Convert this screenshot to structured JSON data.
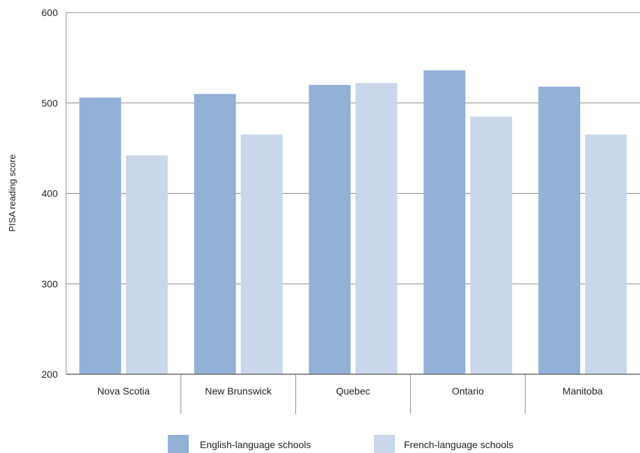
{
  "chart_data": {
    "type": "bar",
    "ylabel": "PISA reading score",
    "ylim": [
      200,
      600
    ],
    "yticks": [
      200,
      300,
      400,
      500,
      600
    ],
    "grid": true,
    "legend_position": "bottom",
    "categories": [
      "Nova Scotia",
      "New Brunswick",
      "Quebec",
      "Ontario",
      "Manitoba"
    ],
    "series": [
      {
        "name": "English-language schools",
        "color": "#93b0d6",
        "values": [
          506,
          510,
          520,
          536,
          518
        ]
      },
      {
        "name": "French-language schools",
        "color": "#cad6ea",
        "values": [
          442,
          465,
          522,
          485,
          465
        ]
      }
    ]
  }
}
